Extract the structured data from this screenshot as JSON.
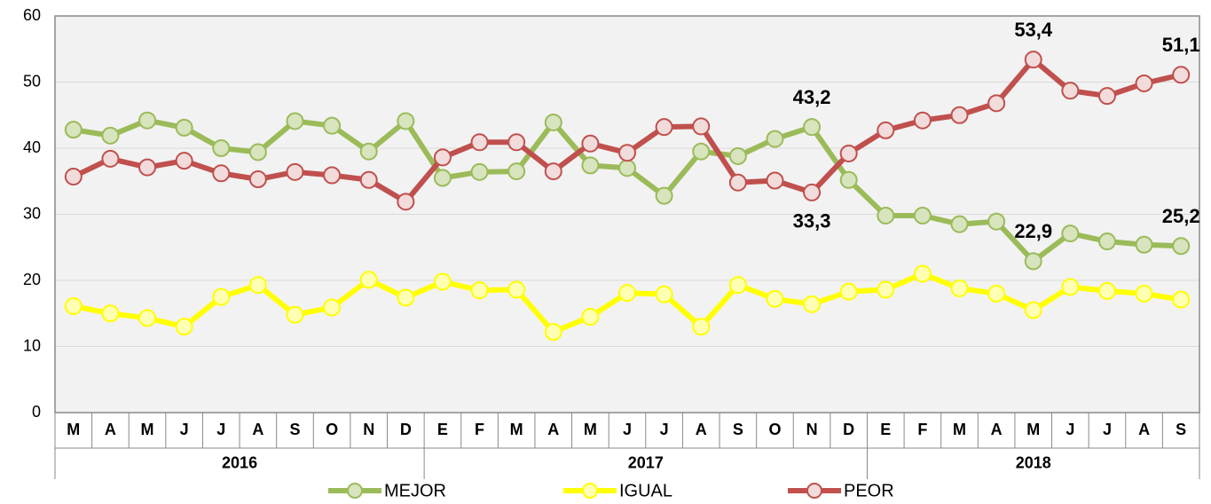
{
  "chart_data": {
    "type": "line",
    "groups": [
      {
        "label": "2016",
        "categories": [
          "M",
          "A",
          "M",
          "J",
          "J",
          "A",
          "S",
          "O",
          "N",
          "D"
        ]
      },
      {
        "label": "2017",
        "categories": [
          "E",
          "F",
          "M",
          "A",
          "M",
          "J",
          "J",
          "A",
          "S",
          "O",
          "N",
          "D"
        ]
      },
      {
        "label": "2018",
        "categories": [
          "E",
          "F",
          "M",
          "A",
          "M",
          "J",
          "J",
          "A",
          "S"
        ]
      }
    ],
    "series": [
      {
        "name": "MEJOR",
        "color": "#9bbb59",
        "marker_fill": "#d7e4bd",
        "label_color": "#4f6228",
        "values": [
          42.8,
          41.9,
          44.2,
          43.1,
          40.0,
          39.4,
          44.1,
          43.4,
          39.5,
          44.1,
          35.5,
          36.4,
          36.5,
          43.9,
          37.4,
          37.0,
          32.8,
          39.5,
          38.8,
          41.4,
          43.2,
          35.2,
          29.8,
          29.8,
          28.5,
          28.9,
          22.9,
          27.1,
          25.9,
          25.4,
          25.2
        ],
        "value_labels": [
          null,
          null,
          null,
          null,
          null,
          null,
          null,
          null,
          null,
          null,
          null,
          null,
          null,
          null,
          null,
          null,
          null,
          null,
          null,
          null,
          "43,2",
          null,
          null,
          null,
          null,
          null,
          "22,9",
          null,
          null,
          null,
          "25,2"
        ]
      },
      {
        "name": "IGUAL",
        "color": "#ffff00",
        "marker_fill": "#ffffb3",
        "label_color": "#b3b300",
        "values": [
          16.1,
          15.0,
          14.3,
          13.0,
          17.5,
          19.3,
          14.8,
          15.9,
          20.1,
          17.4,
          19.8,
          18.5,
          18.6,
          12.2,
          14.5,
          18.1,
          17.9,
          13.0,
          19.3,
          17.2,
          16.4,
          18.3,
          18.6,
          21.0,
          18.8,
          18.0,
          15.5,
          19.0,
          18.4,
          18.0,
          17.1
        ]
      },
      {
        "name": "PEOR",
        "color": "#c0504d",
        "marker_fill": "#f2dcdb",
        "label_color": "#c0504d",
        "values": [
          35.7,
          38.4,
          37.1,
          38.1,
          36.2,
          35.3,
          36.4,
          35.9,
          35.2,
          31.9,
          38.6,
          40.9,
          40.9,
          36.5,
          40.7,
          39.3,
          43.2,
          43.3,
          34.8,
          35.1,
          33.3,
          39.2,
          42.7,
          44.2,
          45.0,
          46.8,
          53.4,
          48.7,
          47.9,
          49.8,
          51.1
        ],
        "value_labels": [
          null,
          null,
          null,
          null,
          null,
          null,
          null,
          null,
          null,
          null,
          null,
          null,
          null,
          null,
          null,
          null,
          null,
          null,
          null,
          null,
          "33,3",
          null,
          null,
          null,
          null,
          null,
          "53,4",
          null,
          null,
          null,
          "51,1"
        ]
      }
    ],
    "ylim": [
      0,
      60
    ],
    "yticks": [
      0,
      10,
      20,
      30,
      40,
      50,
      60
    ],
    "grid": true,
    "legend": "bottom"
  }
}
